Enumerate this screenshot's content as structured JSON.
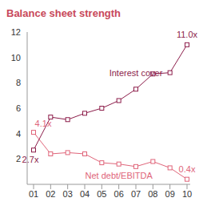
{
  "chart_data": {
    "type": "line",
    "title": "Balance sheet strength",
    "categories": [
      "01",
      "02",
      "03",
      "04",
      "05",
      "06",
      "07",
      "08",
      "09",
      "10"
    ],
    "series": [
      {
        "name": "Interest cover",
        "color": "#8c1d4a",
        "marker": "square",
        "values": [
          2.7,
          5.3,
          5.1,
          5.6,
          6.0,
          6.6,
          7.5,
          8.7,
          8.8,
          11.0
        ],
        "value_labels": [
          "2.7x",
          null,
          null,
          null,
          null,
          null,
          null,
          null,
          null,
          "11.0x"
        ]
      },
      {
        "name": "Net debt/EBITDA",
        "color": "#e0657a",
        "marker": "square",
        "values": [
          4.1,
          2.4,
          2.5,
          2.4,
          1.7,
          1.6,
          1.4,
          1.8,
          1.3,
          0.4
        ],
        "value_labels": [
          "4.1x",
          null,
          null,
          null,
          null,
          null,
          null,
          null,
          null,
          "0.4x"
        ]
      }
    ],
    "ylim": [
      0,
      12
    ],
    "yticks": [
      2,
      4,
      6,
      8,
      10,
      12
    ],
    "grid": false
  }
}
